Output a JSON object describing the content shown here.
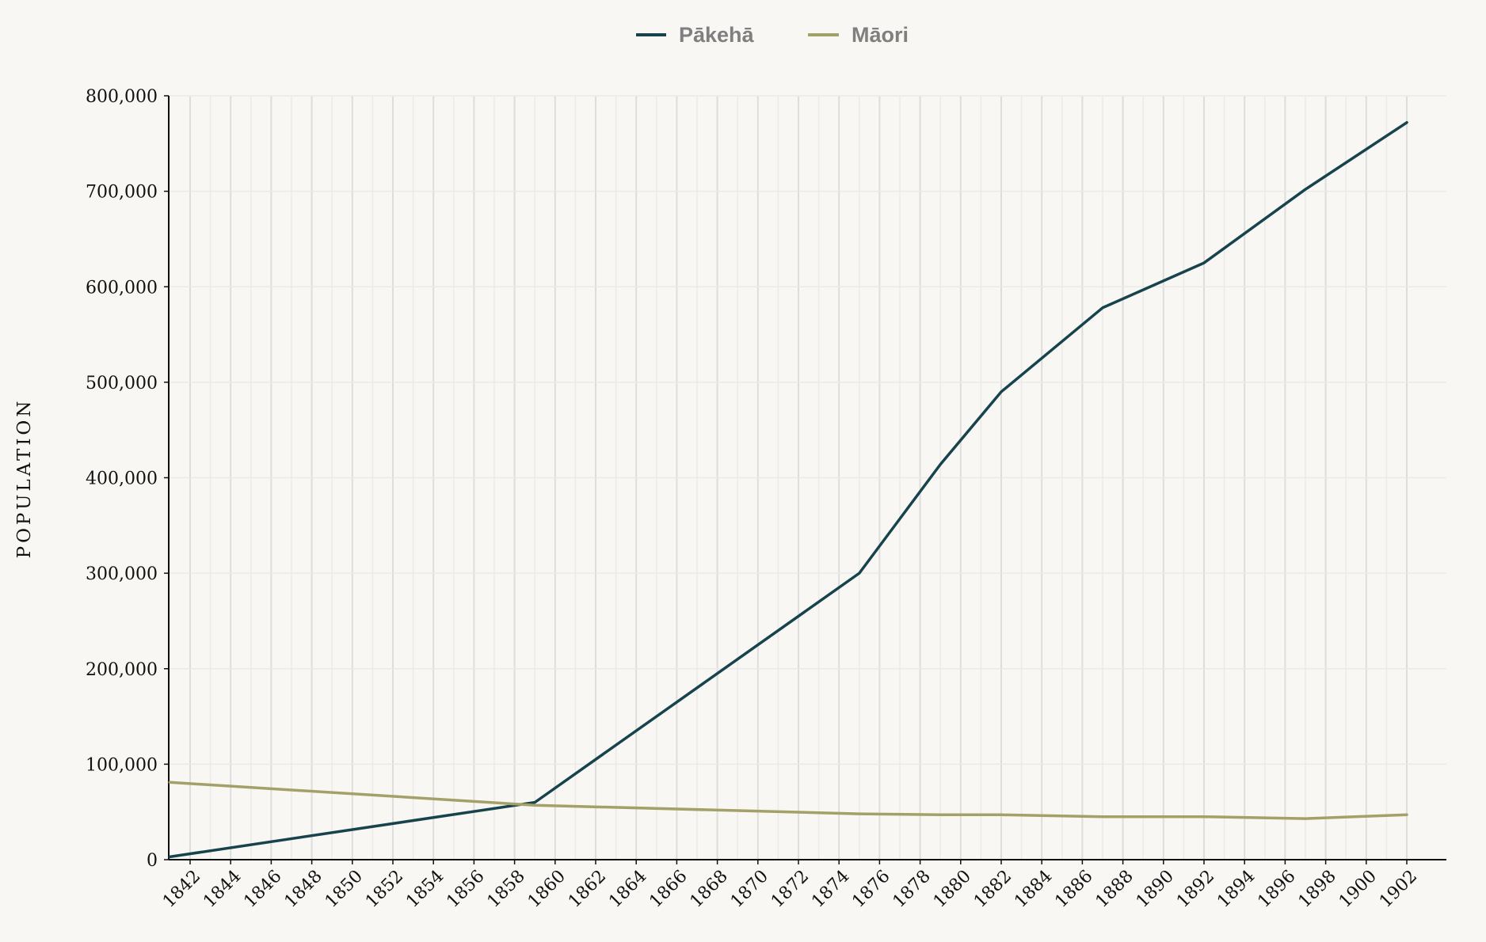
{
  "chart_data": {
    "type": "line",
    "title": "",
    "xlabel": "",
    "ylabel": "POPULATION",
    "xlim": [
      1841,
      1902
    ],
    "ylim": [
      0,
      800000
    ],
    "y_ticks": [
      0,
      100000,
      200000,
      300000,
      400000,
      500000,
      600000,
      700000,
      800000
    ],
    "y_tick_labels": [
      "0",
      "100,000",
      "200,000",
      "300,000",
      "400,000",
      "500,000",
      "600,000",
      "700,000",
      "800,000"
    ],
    "x_ticks": [
      1842,
      1844,
      1846,
      1848,
      1850,
      1852,
      1854,
      1856,
      1858,
      1860,
      1862,
      1864,
      1866,
      1868,
      1870,
      1872,
      1874,
      1876,
      1878,
      1880,
      1882,
      1884,
      1886,
      1888,
      1890,
      1892,
      1894,
      1896,
      1898,
      1900,
      1902
    ],
    "x_tick_labels": [
      "1842",
      "1844",
      "1846",
      "1848",
      "1850",
      "1852",
      "1854",
      "1856",
      "1858",
      "1860",
      "1862",
      "1864",
      "1866",
      "1868",
      "1870",
      "1872",
      "1874",
      "1876",
      "1878",
      "1880",
      "1882",
      "1884",
      "1886",
      "1888",
      "1890",
      "1892",
      "1894",
      "1896",
      "1898",
      "1900",
      "1902"
    ],
    "grid": true,
    "legend_position": "top-center",
    "series": [
      {
        "name": "Pākehā",
        "color": "#17434d",
        "x": [
          1841,
          1859,
          1875,
          1879,
          1882,
          1887,
          1892,
          1897,
          1902
        ],
        "values": [
          3000,
          60000,
          300000,
          414000,
          490000,
          578000,
          625000,
          702000,
          772000
        ]
      },
      {
        "name": "Māori",
        "color": "#a3a167",
        "x": [
          1841,
          1859,
          1875,
          1879,
          1882,
          1887,
          1892,
          1897,
          1902
        ],
        "values": [
          81000,
          57000,
          48000,
          47000,
          47000,
          45000,
          45000,
          43000,
          47000
        ]
      }
    ]
  }
}
